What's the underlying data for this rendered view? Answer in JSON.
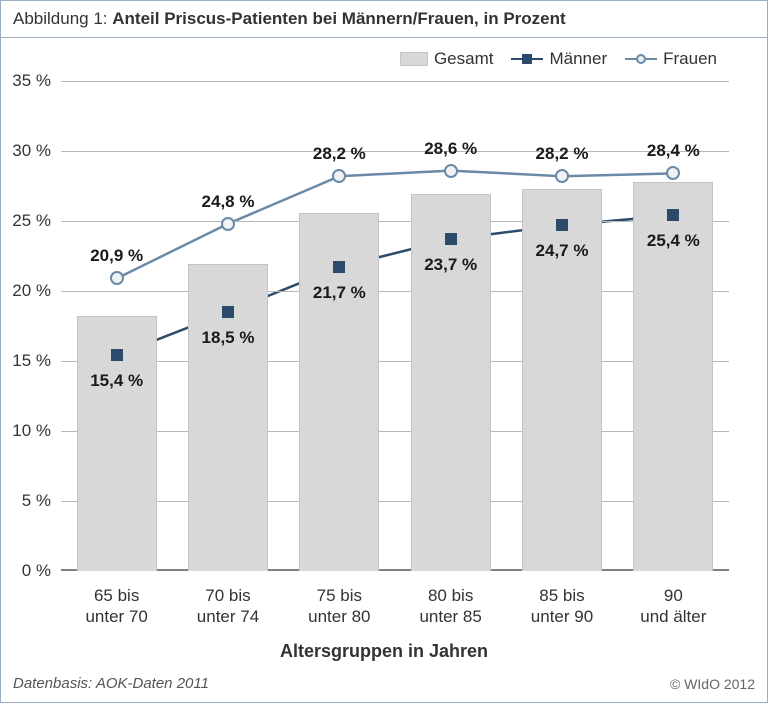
{
  "title_label": "Abbildung 1: ",
  "title_text": "Anteil Priscus-Patienten bei Männern/Frauen, in Prozent",
  "x_axis_title": "Altersgruppen in Jahren",
  "footer_left": "Datenbasis: AOK-Daten 2011",
  "footer_right": "© WIdO 2012",
  "legend": {
    "gesamt": "Gesamt",
    "maenner": "Männer",
    "frauen": "Frauen"
  },
  "chart": {
    "type": "bar+line",
    "ylim": [
      0,
      35
    ],
    "ytick_step": 5,
    "y_tick_suffix": " %",
    "background_color": "#ffffff",
    "grid_color": "#b8b8b8",
    "bar_color": "#d8d8d8",
    "bar_border": "#c4c4c4",
    "maenner_line_color": "#2c4a6a",
    "maenner_marker": "square",
    "frauen_line_color": "#6a8aa8",
    "frauen_marker": "circle",
    "line_width": 2.5,
    "bar_width_ratio": 0.72,
    "title_fontsize": 17,
    "tick_fontsize": 17,
    "label_fontsize": 17,
    "categories": [
      "65 bis\nunter 70",
      "70 bis\nunter 74",
      "75 bis\nunter 80",
      "80 bis\nunter 85",
      "85 bis\nunter 90",
      "90\nund älter"
    ],
    "gesamt_values": [
      18.2,
      21.9,
      25.6,
      26.9,
      27.3,
      27.8
    ],
    "maenner_values": [
      15.4,
      18.5,
      21.7,
      23.7,
      24.7,
      25.4
    ],
    "frauen_values": [
      20.9,
      24.8,
      28.2,
      28.6,
      28.2,
      28.4
    ],
    "maenner_labels": [
      "15,4 %",
      "18,5 %",
      "21,7 %",
      "23,7 %",
      "24,7 %",
      "25,4 %"
    ],
    "frauen_labels": [
      "20,9 %",
      "24,8 %",
      "28,2 %",
      "28,6 %",
      "28,2 %",
      "28,4 %"
    ]
  }
}
